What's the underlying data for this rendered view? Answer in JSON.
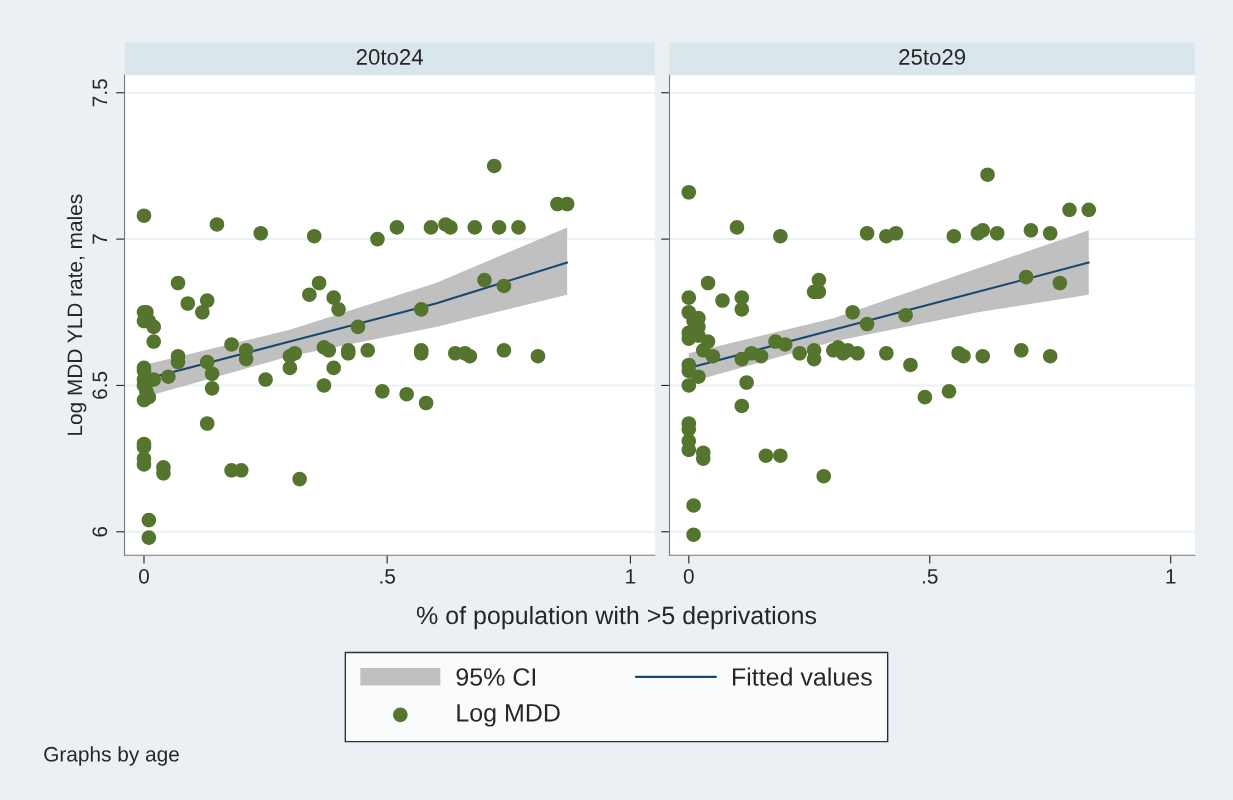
{
  "chart_data": [
    {
      "type": "scatter",
      "title": "20to24",
      "xlabel": "% of population with >5 deprivations",
      "ylabel": "Log MDD YLD rate, males",
      "xlim": [
        -0.04,
        1.05
      ],
      "ylim": [
        5.92,
        7.56
      ],
      "xticks": [
        0,
        {
          "value": 0.5,
          "label": ".5"
        },
        1
      ],
      "yticks": [
        6,
        6.5,
        7,
        7.5
      ],
      "grid": "y",
      "legend": "bottom",
      "annotations": [
        "Graphs by age"
      ],
      "series": [
        {
          "type": "area",
          "name": "95% CI",
          "color": "#c0c0c0"
        },
        {
          "type": "line",
          "name": "Fitted values",
          "color": "#1a476f",
          "x": [
            0,
            0.3,
            0.6,
            0.87
          ],
          "values": [
            6.52,
            6.65,
            6.78,
            6.92
          ],
          "lower": [
            6.46,
            6.6,
            6.7,
            6.81
          ],
          "upper": [
            6.57,
            6.69,
            6.85,
            7.04
          ]
        },
        {
          "name": "Log MDD",
          "color": "#55752f",
          "x": [
            0,
            0,
            0.005,
            0.01,
            0,
            0.02,
            0.02,
            0,
            0,
            0,
            0,
            0.005,
            0.01,
            0,
            0.02,
            0,
            0,
            0,
            0,
            0.01,
            0.01,
            0.04,
            0.04,
            0.05,
            0.07,
            0.07,
            0.07,
            0.09,
            0.12,
            0.13,
            0.13,
            0.14,
            0.14,
            0.13,
            0.15,
            0.18,
            0.18,
            0.2,
            0.21,
            0.21,
            0.24,
            0.25,
            0.3,
            0.3,
            0.31,
            0.32,
            0.34,
            0.35,
            0.36,
            0.37,
            0.37,
            0.38,
            0.39,
            0.4,
            0.39,
            0.42,
            0.42,
            0.44,
            0.46,
            0.48,
            0.49,
            0.52,
            0.54,
            0.57,
            0.57,
            0.57,
            0.58,
            0.59,
            0.62,
            0.63,
            0.64,
            0.66,
            0.67,
            0.68,
            0.7,
            0.72,
            0.73,
            0.74,
            0.74,
            0.77,
            0.81,
            0.85,
            0.87
          ],
          "values": [
            7.08,
            6.75,
            6.75,
            6.72,
            6.72,
            6.7,
            6.65,
            6.56,
            6.55,
            6.52,
            6.5,
            6.48,
            6.46,
            6.45,
            6.52,
            6.3,
            6.29,
            6.25,
            6.23,
            6.04,
            5.98,
            6.22,
            6.2,
            6.53,
            6.58,
            6.6,
            6.85,
            6.78,
            6.75,
            6.79,
            6.58,
            6.54,
            6.49,
            6.37,
            7.05,
            6.64,
            6.21,
            6.21,
            6.62,
            6.59,
            7.02,
            6.52,
            6.56,
            6.6,
            6.61,
            6.18,
            6.81,
            7.01,
            6.85,
            6.63,
            6.5,
            6.62,
            6.8,
            6.76,
            6.56,
            6.62,
            6.61,
            6.7,
            6.62,
            7.0,
            6.48,
            7.04,
            6.47,
            6.61,
            6.62,
            6.76,
            6.44,
            7.04,
            7.05,
            7.04,
            6.61,
            6.61,
            6.6,
            7.04,
            6.86,
            7.25,
            7.04,
            6.84,
            6.62,
            7.04,
            6.6,
            7.12,
            7.12
          ]
        }
      ]
    },
    {
      "type": "scatter",
      "title": "25to29",
      "xlim": [
        -0.04,
        1.05
      ],
      "ylim": [
        5.92,
        7.56
      ],
      "xticks": [
        0,
        {
          "value": 0.5,
          "label": ".5"
        },
        1
      ],
      "yticks": [
        6,
        6.5,
        7,
        7.5
      ],
      "grid": "y",
      "tick_labels": "x",
      "series": [
        {
          "type": "area",
          "color": "#c0c0c0"
        },
        {
          "type": "line",
          "color": "#1a476f",
          "x": [
            0,
            0.3,
            0.6,
            0.83
          ],
          "values": [
            6.56,
            6.69,
            6.82,
            6.92
          ],
          "lower": [
            6.51,
            6.65,
            6.75,
            6.81
          ],
          "upper": [
            6.61,
            6.73,
            6.9,
            7.03
          ]
        },
        {
          "color": "#55752f",
          "x": [
            0,
            0,
            0,
            0.01,
            0.02,
            0.02,
            0,
            0,
            0.02,
            0.04,
            0.03,
            0,
            0,
            0,
            0.02,
            0,
            0,
            0,
            0,
            0.03,
            0.03,
            0.01,
            0.01,
            0.04,
            0.07,
            0.1,
            0.11,
            0.11,
            0.05,
            0.11,
            0.12,
            0.11,
            0.13,
            0.15,
            0.16,
            0.18,
            0.19,
            0.2,
            0.19,
            0.23,
            0.26,
            0.26,
            0.26,
            0.27,
            0.27,
            0.28,
            0.3,
            0.31,
            0.32,
            0.33,
            0.34,
            0.35,
            0.37,
            0.37,
            0.41,
            0.41,
            0.43,
            0.45,
            0.46,
            0.49,
            0.54,
            0.55,
            0.56,
            0.57,
            0.6,
            0.61,
            0.61,
            0.62,
            0.64,
            0.69,
            0.7,
            0.71,
            0.75,
            0.75,
            0.77,
            0.79,
            0.83
          ],
          "values": [
            7.16,
            6.8,
            6.75,
            6.72,
            6.73,
            6.7,
            6.68,
            6.66,
            6.67,
            6.65,
            6.62,
            6.57,
            6.55,
            6.5,
            6.53,
            6.37,
            6.35,
            6.31,
            6.28,
            6.27,
            6.25,
            6.09,
            5.99,
            6.85,
            6.79,
            7.04,
            6.8,
            6.76,
            6.6,
            6.59,
            6.51,
            6.43,
            6.61,
            6.6,
            6.26,
            6.65,
            6.26,
            6.64,
            7.01,
            6.61,
            6.62,
            6.59,
            6.82,
            6.82,
            6.86,
            6.19,
            6.62,
            6.63,
            6.61,
            6.62,
            6.75,
            6.61,
            7.02,
            6.71,
            6.61,
            7.01,
            7.02,
            6.74,
            6.57,
            6.46,
            6.48,
            7.01,
            6.61,
            6.6,
            7.02,
            7.03,
            6.6,
            7.22,
            7.02,
            6.62,
            6.87,
            7.03,
            7.02,
            6.6,
            6.85,
            7.1,
            7.1
          ]
        }
      ]
    }
  ]
}
